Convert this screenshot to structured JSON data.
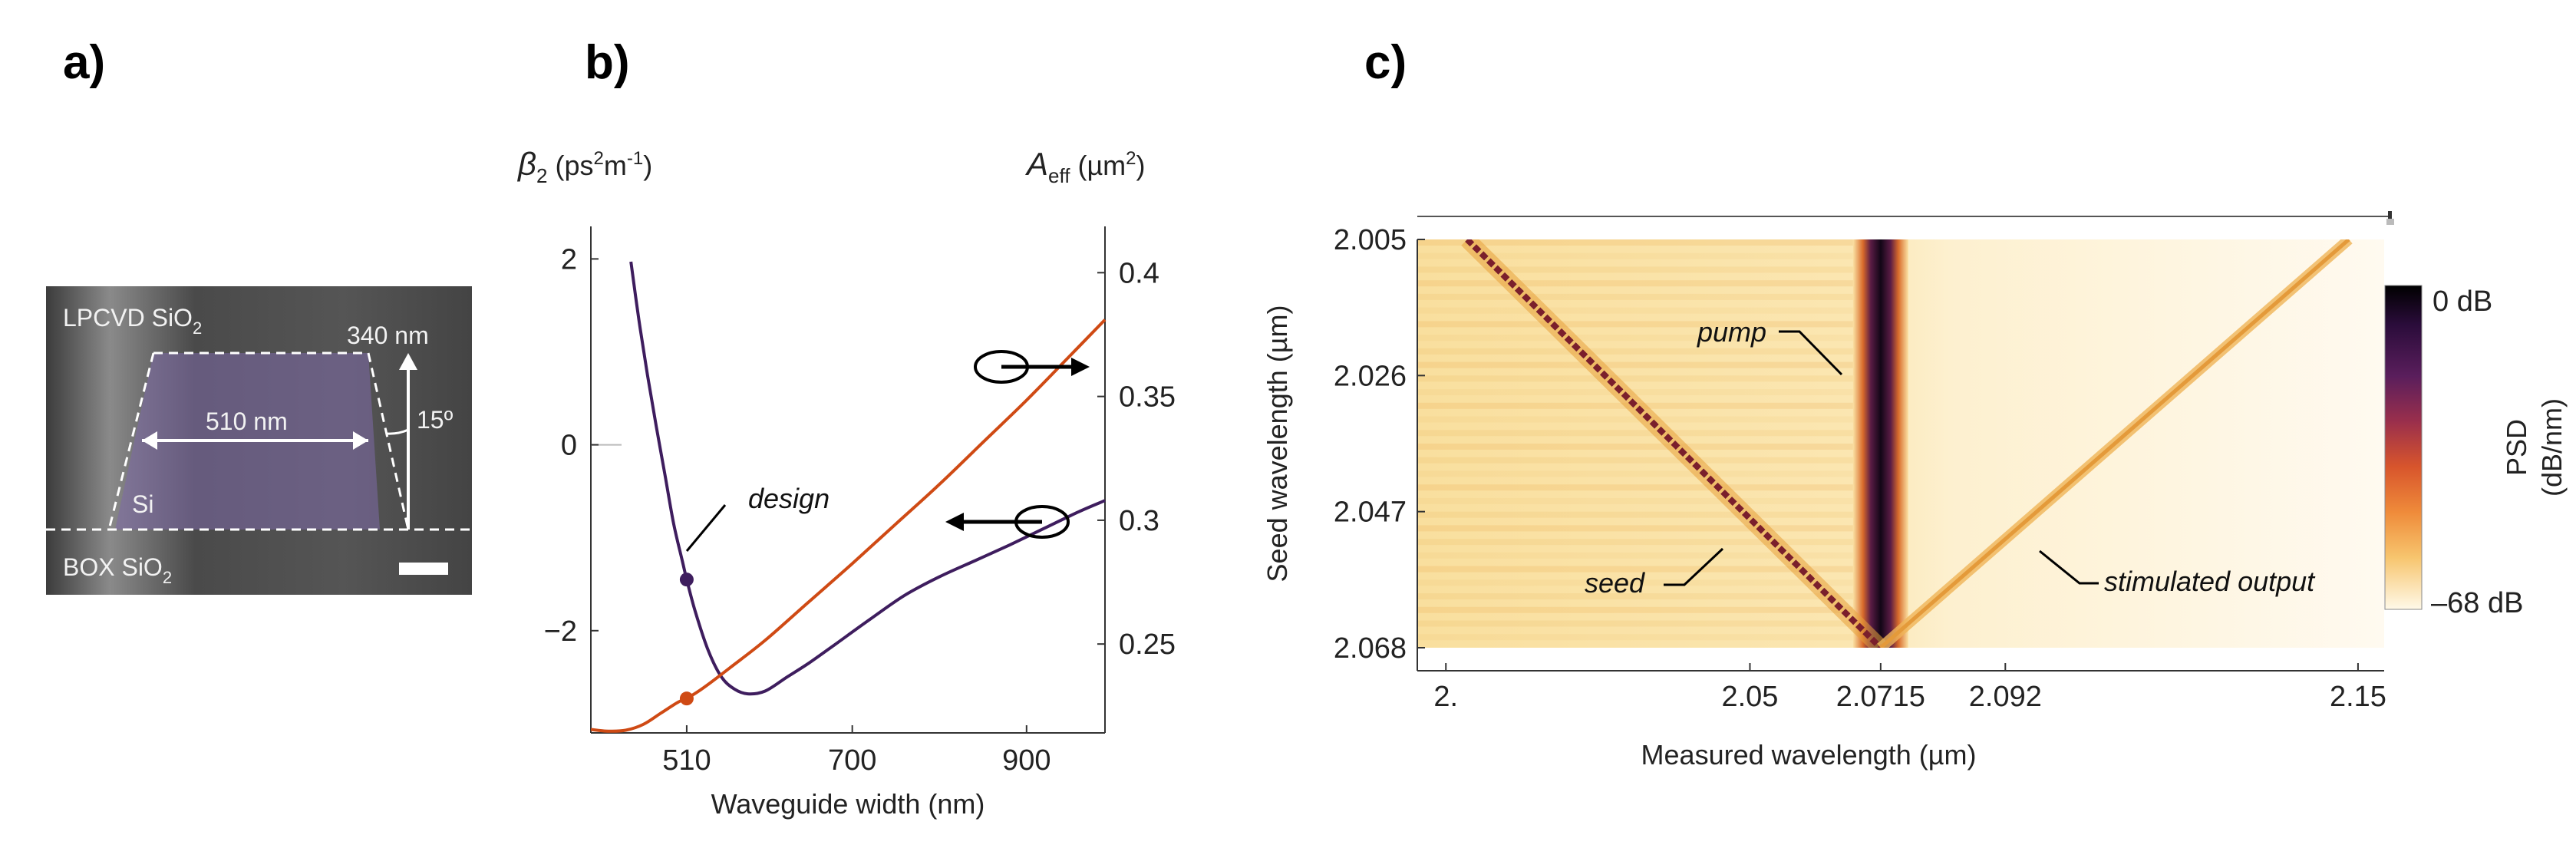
{
  "panels": {
    "a": {
      "label": "a)",
      "top_layer": "LPCVD SiO",
      "top_layer_sub": "2",
      "core": "Si",
      "bottom_layer": "BOX SiO",
      "bottom_layer_sub": "2",
      "width_label": "510 nm",
      "height_label": "340 nm",
      "angle_label": "15º"
    },
    "b": {
      "label": "b)",
      "left_axis_symbol": "β",
      "left_axis_sub": "2",
      "left_axis_unit": "(ps",
      "left_axis_unit_sup": "2",
      "left_axis_unit_tail": "m",
      "left_axis_unit_sup2": "-1",
      "left_axis_close": ")",
      "right_axis_symbol": "A",
      "right_axis_sub": "eff",
      "right_axis_unit": "(µm",
      "right_axis_unit_sup": "2",
      "right_axis_close": ")",
      "annotation": "design"
    },
    "c": {
      "label": "c)",
      "annotation_pump": "pump",
      "annotation_seed": "seed",
      "annotation_output": "stimulated output",
      "colorbar_top": "0 dB",
      "colorbar_bottom": "–68 dB",
      "colorbar_title": "PSD",
      "colorbar_unit": "(dB/nm)"
    }
  },
  "colors": {
    "beta2_curve": "#3e1d5e",
    "aeff_curve": "#cf4a14",
    "heat_background": "#fbe7b0",
    "heat_line": "#7a1f2c",
    "pump_core": "#1a0a1e"
  },
  "chart_data": [
    {
      "type": "line",
      "panel": "b",
      "xlabel": "Waveguide width (nm)",
      "ylabel": "β2 (ps2m-1)",
      "ylabel_right": "Aeff (µm2)",
      "xlim": [
        400,
        990
      ],
      "ylim": [
        -3.1,
        2.35
      ],
      "ylim_right": [
        0.2141,
        0.4187
      ],
      "x_ticks": [
        510,
        700,
        900
      ],
      "y_ticks": [
        2,
        0,
        -2
      ],
      "y_tick_labels": [
        "2",
        "0",
        "−2"
      ],
      "y_ticks_right": [
        0.4,
        0.35,
        0.3,
        0.25
      ],
      "y_tick_labels_right": [
        "0.4",
        "0.35",
        "0.3",
        "0.25"
      ],
      "series": [
        {
          "name": "β2",
          "axis": "left",
          "x": [
            446,
            455,
            465,
            475,
            485,
            495,
            505,
            510,
            520,
            535,
            550,
            565,
            580,
            600,
            625,
            650,
            680,
            720,
            760,
            800,
            840,
            880,
            920,
            960,
            990
          ],
          "y": [
            1.97,
            1.35,
            0.75,
            0.2,
            -0.32,
            -0.85,
            -1.25,
            -1.45,
            -1.8,
            -2.22,
            -2.5,
            -2.63,
            -2.68,
            -2.65,
            -2.5,
            -2.35,
            -2.15,
            -1.88,
            -1.62,
            -1.42,
            -1.25,
            -1.08,
            -0.9,
            -0.72,
            -0.6
          ]
        },
        {
          "name": "Aeff",
          "axis": "right",
          "x": [
            400,
            420,
            440,
            460,
            480,
            500,
            510,
            530,
            560,
            600,
            650,
            700,
            750,
            800,
            850,
            900,
            950,
            990
          ],
          "y": [
            0.2155,
            0.2148,
            0.2152,
            0.2175,
            0.222,
            0.2265,
            0.228,
            0.2325,
            0.2405,
            0.2515,
            0.267,
            0.2825,
            0.2985,
            0.3145,
            0.3315,
            0.3485,
            0.3665,
            0.381
          ]
        }
      ],
      "design_point": {
        "x": 510,
        "beta2": -1.45,
        "aeff": 0.228
      }
    },
    {
      "type": "heatmap",
      "panel": "c",
      "xlabel": "Measured wavelength (µm)",
      "ylabel": "Seed wavelength (µm)",
      "x_ticks": [
        2.0,
        2.05,
        2.0715,
        2.092,
        2.15
      ],
      "x_tick_labels": [
        "2.",
        "2.05",
        "2.0715",
        "2.092",
        "2.15"
      ],
      "y_ticks": [
        2.005,
        2.026,
        2.047,
        2.068
      ],
      "y_tick_labels": [
        "2.005",
        "2.026",
        "2.047",
        "2.068"
      ],
      "xlim": [
        1.9953,
        2.1543
      ],
      "ylim": [
        2.005,
        2.068
      ],
      "pump_wavelength": 2.0715,
      "seed_line": {
        "x": [
          2.0035,
          2.0715
        ],
        "y": [
          2.005,
          2.068
        ]
      },
      "stimulated_output_line": {
        "x": [
          2.0715,
          2.1485
        ],
        "y": [
          2.068,
          2.005
        ]
      },
      "colorbar_range_db": [
        -68,
        0
      ]
    }
  ]
}
